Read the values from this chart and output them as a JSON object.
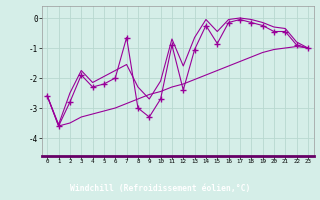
{
  "x": [
    0,
    1,
    2,
    3,
    4,
    5,
    6,
    7,
    8,
    9,
    10,
    11,
    12,
    13,
    14,
    15,
    16,
    17,
    18,
    19,
    20,
    21,
    22,
    23
  ],
  "y_main": [
    -2.6,
    -3.6,
    -2.8,
    -1.9,
    -2.3,
    -2.2,
    -2.0,
    -0.65,
    -3.0,
    -3.3,
    -2.7,
    -0.9,
    -2.4,
    -1.05,
    -0.25,
    -0.85,
    -0.15,
    -0.05,
    -0.15,
    -0.25,
    -0.45,
    -0.45,
    -0.9,
    -1.0
  ],
  "y_upper": [
    -2.6,
    -3.55,
    -2.5,
    -1.75,
    -2.15,
    -1.95,
    -1.75,
    -1.55,
    -2.3,
    -2.7,
    -2.1,
    -0.7,
    -1.6,
    -0.65,
    -0.05,
    -0.45,
    -0.05,
    0.0,
    -0.05,
    -0.15,
    -0.3,
    -0.35,
    -0.8,
    -1.0
  ],
  "y_lower": [
    -2.6,
    -3.6,
    -3.5,
    -3.3,
    -3.2,
    -3.1,
    -3.0,
    -2.85,
    -2.7,
    -2.55,
    -2.45,
    -2.3,
    -2.2,
    -2.05,
    -1.9,
    -1.75,
    -1.6,
    -1.45,
    -1.3,
    -1.15,
    -1.05,
    -1.0,
    -0.95,
    -1.0
  ],
  "bg_color": "#d5eee8",
  "line_color": "#990099",
  "grid_color": "#b8d8d0",
  "xlabel": "Windchill (Refroidissement éolien,°C)",
  "xlabel_bg": "#660066",
  "xlabel_color": "#ffffff",
  "xaxis_line_color": "#660066",
  "ylabel_ticks": [
    0,
    -1,
    -2,
    -3,
    -4
  ],
  "xlim": [
    -0.5,
    23.5
  ],
  "ylim": [
    -4.6,
    0.4
  ],
  "figsize": [
    3.2,
    2.0
  ],
  "dpi": 100
}
